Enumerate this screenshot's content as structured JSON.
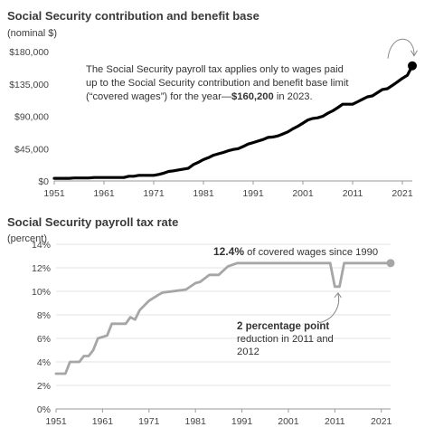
{
  "chart_data": [
    {
      "type": "line",
      "title": "Social Security contribution and benefit base",
      "ylabel": "(nominal $)",
      "ylim": [
        0,
        180000
      ],
      "yticks": [
        "$0",
        "$45,000",
        "$90,000",
        "$135,000",
        "$180,000"
      ],
      "ytick_values": [
        0,
        45000,
        90000,
        135000,
        180000
      ],
      "xticks": [
        "1951",
        "1961",
        "1971",
        "1981",
        "1991",
        "2001",
        "2011",
        "2021"
      ],
      "xtick_values": [
        1951,
        1961,
        1971,
        1981,
        1991,
        2001,
        2011,
        2021
      ],
      "xlim": [
        1951,
        2023
      ],
      "annotation_lines": [
        [
          {
            "text": "The Social Security payroll tax applies only to wages paid",
            "bold": false
          }
        ],
        [
          {
            "text": "up to the Social Security contribution and benefit base limit",
            "bold": false
          }
        ],
        [
          {
            "text": "(“covered wages”) for the year—",
            "bold": false
          },
          {
            "text": "$160,200",
            "bold": true
          },
          {
            "text": " in 2023.",
            "bold": false
          }
        ]
      ],
      "color": "#000000",
      "series": [
        {
          "x": [
            1951,
            1954,
            1955,
            1958,
            1959,
            1965,
            1966,
            1967,
            1968,
            1971,
            1972,
            1973,
            1974,
            1975,
            1976,
            1977,
            1978,
            1979,
            1980,
            1981,
            1982,
            1983,
            1984,
            1985,
            1986,
            1987,
            1988,
            1989,
            1990,
            1991,
            1992,
            1993,
            1994,
            1995,
            1996,
            1997,
            1998,
            1999,
            2000,
            2001,
            2002,
            2003,
            2004,
            2005,
            2006,
            2007,
            2008,
            2009,
            2011,
            2012,
            2013,
            2014,
            2015,
            2017,
            2018,
            2019,
            2020,
            2021,
            2022,
            2023
          ],
          "y": [
            3600,
            3600,
            4200,
            4200,
            4800,
            4800,
            6600,
            6600,
            7800,
            7800,
            9000,
            10800,
            13200,
            14100,
            15300,
            16500,
            17700,
            22900,
            25900,
            29700,
            32400,
            35700,
            37800,
            39600,
            42000,
            43800,
            45000,
            48000,
            51300,
            53400,
            55500,
            57600,
            60600,
            61200,
            62700,
            65400,
            68400,
            72600,
            76200,
            80400,
            84900,
            87000,
            87900,
            90000,
            94200,
            97500,
            102000,
            106800,
            106800,
            110100,
            113700,
            117000,
            118500,
            127200,
            128400,
            132900,
            137700,
            142800,
            147000,
            160200
          ]
        }
      ]
    },
    {
      "type": "line",
      "title": "Social Security payroll tax rate",
      "ylabel": "(percent)",
      "ylim": [
        0,
        14
      ],
      "yticks": [
        "0%",
        "2%",
        "4%",
        "6%",
        "8%",
        "10%",
        "12%",
        "14%"
      ],
      "ytick_values": [
        0,
        2,
        4,
        6,
        8,
        10,
        12,
        14
      ],
      "xticks": [
        "1951",
        "1961",
        "1971",
        "1981",
        "1991",
        "2001",
        "2011",
        "2021"
      ],
      "xtick_values": [
        1951,
        1961,
        1971,
        1981,
        1991,
        2001,
        2011,
        2021
      ],
      "xlim": [
        1951,
        2023
      ],
      "annotation_top": [
        {
          "text": "12.4%",
          "bold": true
        },
        {
          "text": " of covered wages since 1990",
          "bold": false
        }
      ],
      "annotation_bottom": [
        [
          {
            "text": "2 percentage point",
            "bold": true
          }
        ],
        [
          {
            "text": "reduction in 2011 and",
            "bold": false
          }
        ],
        [
          {
            "text": "2012",
            "bold": false
          }
        ]
      ],
      "color": "#a6a6a6",
      "series": [
        {
          "x": [
            1951,
            1953,
            1954,
            1956,
            1957,
            1958,
            1959,
            1960,
            1962,
            1963,
            1966,
            1967,
            1968,
            1969,
            1971,
            1973,
            1974,
            1978,
            1979,
            1981,
            1982,
            1984,
            1986,
            1988,
            1990,
            2010,
            2011,
            2012,
            2013,
            2023
          ],
          "y": [
            3.0,
            3.0,
            4.0,
            4.0,
            4.5,
            4.5,
            5.0,
            6.0,
            6.25,
            7.25,
            7.25,
            7.8,
            7.6,
            8.4,
            9.2,
            9.7,
            9.9,
            10.1,
            10.16,
            10.7,
            10.8,
            11.4,
            11.4,
            12.12,
            12.4,
            12.4,
            10.4,
            10.4,
            12.4,
            12.4
          ]
        }
      ]
    }
  ]
}
